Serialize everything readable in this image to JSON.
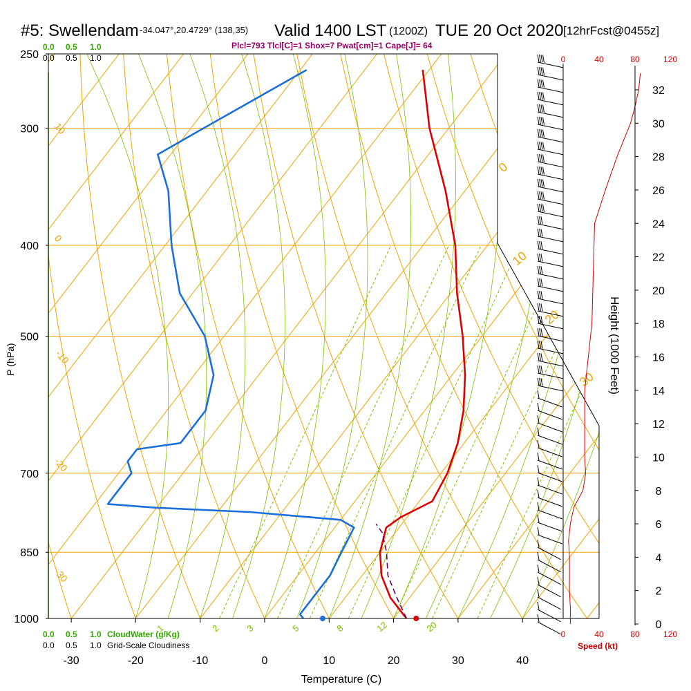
{
  "header": {
    "station": "#5: Swellendam",
    "coords": "-34.047°,20.4729° (138,35)",
    "valid": "Valid 1400 LST",
    "utc": "(1200Z)",
    "date": "TUE 20 Oct 2020",
    "forecast": "[12hrFcst@0455z]",
    "indices": "Plcl=793 Tlcl[C]=1 Shox=7 Pwat[cm]=1 Cape[J]= 64"
  },
  "colors": {
    "temperature": "#dd0000",
    "dewpoint": "#1a6fdc",
    "isotherm": "#f0a500",
    "moist_adiabat": "#7ec000",
    "mixing_ratio": "#7ec000",
    "cloud_water": "#33aa00",
    "parcel": "#660066",
    "wind_speed": "#cc0000",
    "indices": "#990066"
  },
  "chart_data": {
    "type": "line",
    "subtype": "skew-t log-p sounding",
    "xlabel": "Temperature (C)",
    "ylabel": "P (hPa)",
    "xlim": [
      -35,
      45
    ],
    "x_ticks": [
      "-30",
      "-20",
      "-10",
      "0",
      "10",
      "20",
      "30",
      "40"
    ],
    "y_ticks": [
      "250",
      "300",
      "400",
      "500",
      "700",
      "850",
      "1000"
    ],
    "series": [
      {
        "role": "temperature",
        "points": [
          [
            1000,
            22
          ],
          [
            990,
            21
          ],
          [
            950,
            17
          ],
          [
            900,
            13
          ],
          [
            850,
            10
          ],
          [
            800,
            8
          ],
          [
            780,
            9
          ],
          [
            750,
            12
          ],
          [
            700,
            11
          ],
          [
            650,
            9
          ],
          [
            600,
            6
          ],
          [
            550,
            2
          ],
          [
            500,
            -3
          ],
          [
            450,
            -9
          ],
          [
            400,
            -15
          ],
          [
            350,
            -23
          ],
          [
            300,
            -33
          ],
          [
            260,
            -41
          ]
        ]
      },
      {
        "role": "dewpoint",
        "points": [
          [
            1000,
            6
          ],
          [
            990,
            5
          ],
          [
            950,
            5
          ],
          [
            900,
            5
          ],
          [
            850,
            4
          ],
          [
            800,
            3
          ],
          [
            785,
            0
          ],
          [
            770,
            -15
          ],
          [
            762,
            -30
          ],
          [
            755,
            -38
          ],
          [
            700,
            -38
          ],
          [
            680,
            -40
          ],
          [
            660,
            -40
          ],
          [
            650,
            -34
          ],
          [
            600,
            -34
          ],
          [
            550,
            -37
          ],
          [
            500,
            -43
          ],
          [
            450,
            -52
          ],
          [
            400,
            -59
          ],
          [
            350,
            -66
          ],
          [
            320,
            -72
          ],
          [
            300,
            -68
          ],
          [
            260,
            -59
          ]
        ]
      },
      {
        "role": "parcel",
        "points": [
          [
            1000,
            22
          ],
          [
            950,
            18
          ],
          [
            900,
            14
          ],
          [
            850,
            11
          ],
          [
            810,
            8
          ],
          [
            793,
            6
          ]
        ]
      }
    ],
    "surface_temperature": 23.5,
    "surface_dewpoint": 9,
    "wind_speed_axis": {
      "label": "Speed (kt)",
      "ticks": [
        "0",
        "40",
        "80",
        "120"
      ]
    },
    "wind_speed_profile": [
      [
        0,
        8
      ],
      [
        1,
        8
      ],
      [
        2,
        7
      ],
      [
        3,
        7
      ],
      [
        4,
        7
      ],
      [
        5,
        6
      ],
      [
        6,
        8
      ],
      [
        7,
        12
      ],
      [
        8,
        22
      ],
      [
        9,
        25
      ],
      [
        10,
        24
      ],
      [
        12,
        24
      ],
      [
        14,
        24
      ],
      [
        16,
        28
      ],
      [
        18,
        32
      ],
      [
        20,
        33
      ],
      [
        22,
        34
      ],
      [
        24,
        35
      ],
      [
        26,
        47
      ],
      [
        28,
        60
      ],
      [
        30,
        75
      ],
      [
        31,
        80
      ],
      [
        32,
        84
      ],
      [
        33,
        86
      ]
    ],
    "height_axis": {
      "label": "Height (1000 Feet)",
      "ticks": [
        "0",
        "2",
        "4",
        "6",
        "8",
        "10",
        "12",
        "14",
        "16",
        "18",
        "20",
        "22",
        "24",
        "26",
        "28",
        "30",
        "32"
      ]
    },
    "cloud_axes": {
      "cloud_water_label": "CloudWater (g/Kg)",
      "cloud_water_ticks": [
        "0.0",
        "0.5",
        "1.0"
      ],
      "cloudiness_label": "Grid-Scale Cloudiness",
      "cloudiness_ticks": [
        "0.0",
        "0.5",
        "1.0"
      ]
    },
    "isotherm_labels": [
      "10",
      "0",
      "-10",
      "-20",
      "-30"
    ],
    "isotherm_labels_right": [
      "0",
      "10",
      "20",
      "30"
    ],
    "mixing_ratio_labels": [
      "1",
      "2",
      "3",
      "5",
      "8",
      "12",
      "20"
    ]
  }
}
